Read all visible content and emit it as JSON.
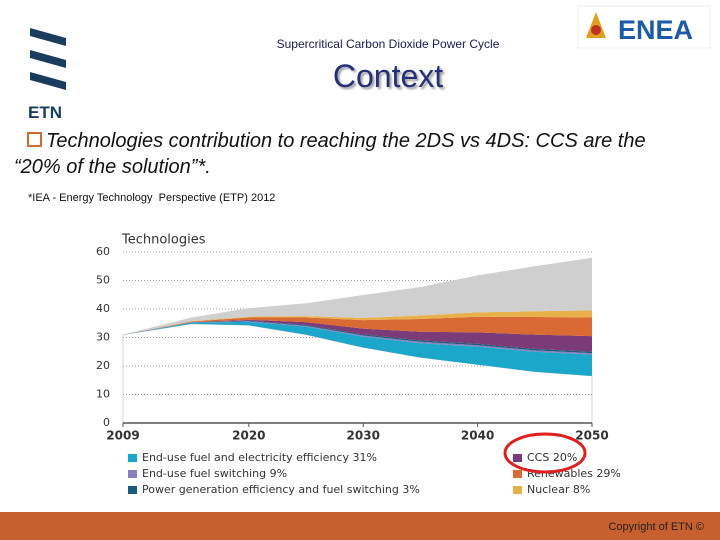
{
  "header": {
    "subtitle": "Supercritical Carbon Dioxide Power Cycle",
    "title": "Context",
    "logo_left": "ETN",
    "logo_right": "ENEA"
  },
  "bullet": "Technologies contribution to reaching the 2DS vs 4DS: CCS are the “20% of the solution”*.",
  "footnote": "*IEA - Energy Technology  Perspective (ETP) 2012",
  "chart_data": {
    "type": "area",
    "stacked": true,
    "title": "Technologies",
    "x": [
      2009,
      2015,
      2020,
      2025,
      2030,
      2035,
      2040,
      2045,
      2050
    ],
    "xlim": [
      2009,
      2050
    ],
    "xticks": [
      2009,
      2020,
      2030,
      2040,
      2050
    ],
    "ylim": [
      0,
      60
    ],
    "yticks": [
      0,
      10,
      20,
      30,
      40,
      50,
      60
    ],
    "grid": true,
    "series": [
      {
        "values": [
          31,
          34.8,
          34.3,
          31,
          26.5,
          23,
          20.5,
          18,
          16.5
        ]
      },
      {
        "name": "End-use fuel and electricity efficiency 31%",
        "color": "#1aa7c9",
        "values": [
          0,
          0.4,
          1.2,
          2.8,
          3.8,
          5,
          6.3,
          7,
          7.5
        ]
      },
      {
        "name": "End-use fuel switching 9%",
        "color": "#8a7fbf",
        "values": [
          0,
          0.1,
          0.2,
          0.3,
          0.4,
          0.5,
          0.5,
          0.5,
          0.5
        ]
      },
      {
        "name": "Power generation efficiency and fuel switching 3%",
        "color": "#1d5b7a",
        "values": [
          0,
          0.1,
          0.2,
          0.3,
          0.4,
          0.5,
          0.5,
          0.5,
          0.5
        ]
      },
      {
        "name": "CCS 20%",
        "color": "#7b3a78",
        "values": [
          0,
          0,
          0.3,
          1,
          2,
          3,
          4,
          5,
          5.5
        ]
      },
      {
        "name": "Renewables 29%",
        "color": "#d96a33",
        "values": [
          0,
          0.2,
          0.8,
          1.6,
          3,
          4.5,
          5.5,
          6.2,
          6.5
        ]
      },
      {
        "name": "Nuclear 8%",
        "color": "#e8b04a",
        "values": [
          0,
          0.2,
          0.3,
          0.5,
          0.8,
          1.2,
          1.5,
          2,
          2.5
        ]
      },
      {
        "color": "#cfcfcf",
        "values": [
          0,
          1.2,
          3,
          4.5,
          8,
          10,
          13,
          15.8,
          18.5
        ]
      }
    ]
  },
  "footer": "Copyright of ETN ©"
}
